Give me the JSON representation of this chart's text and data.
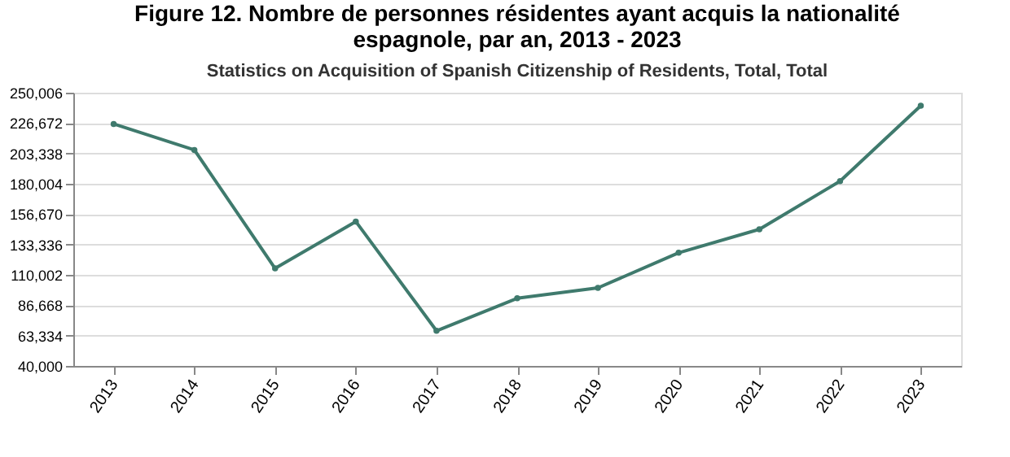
{
  "chart_data": {
    "type": "line",
    "title": [
      "Figure 12. Nombre de personnes résidentes ayant acquis la nationalité",
      "espagnole, par an, 2013 - 2023"
    ],
    "subtitle": "Statistics on Acquisition of Spanish Citizenship of Residents, Total, Total",
    "categories": [
      "2013",
      "2014",
      "2015",
      "2016",
      "2017",
      "2018",
      "2019",
      "2020",
      "2021",
      "2022",
      "2023"
    ],
    "series": [
      {
        "color": "#3f7a6d",
        "values": [
          226000,
          206000,
          115000,
          151000,
          67000,
          92000,
          100000,
          127000,
          145000,
          182000,
          240000
        ]
      }
    ],
    "ylim": [
      40000,
      250006
    ],
    "yticks": [
      {
        "value": 40000,
        "label": "40,000"
      },
      {
        "value": 63334,
        "label": "63,334"
      },
      {
        "value": 86668,
        "label": "86,668"
      },
      {
        "value": 110002,
        "label": "110,002"
      },
      {
        "value": 133336,
        "label": "133,336"
      },
      {
        "value": 156670,
        "label": "156,670"
      },
      {
        "value": 180004,
        "label": "180,004"
      },
      {
        "value": 203338,
        "label": "203,338"
      },
      {
        "value": 226672,
        "label": "226,672"
      },
      {
        "value": 250006,
        "label": "250,006"
      }
    ],
    "grid": "y",
    "marker": "circle",
    "line_style": "solid",
    "legend": false
  }
}
